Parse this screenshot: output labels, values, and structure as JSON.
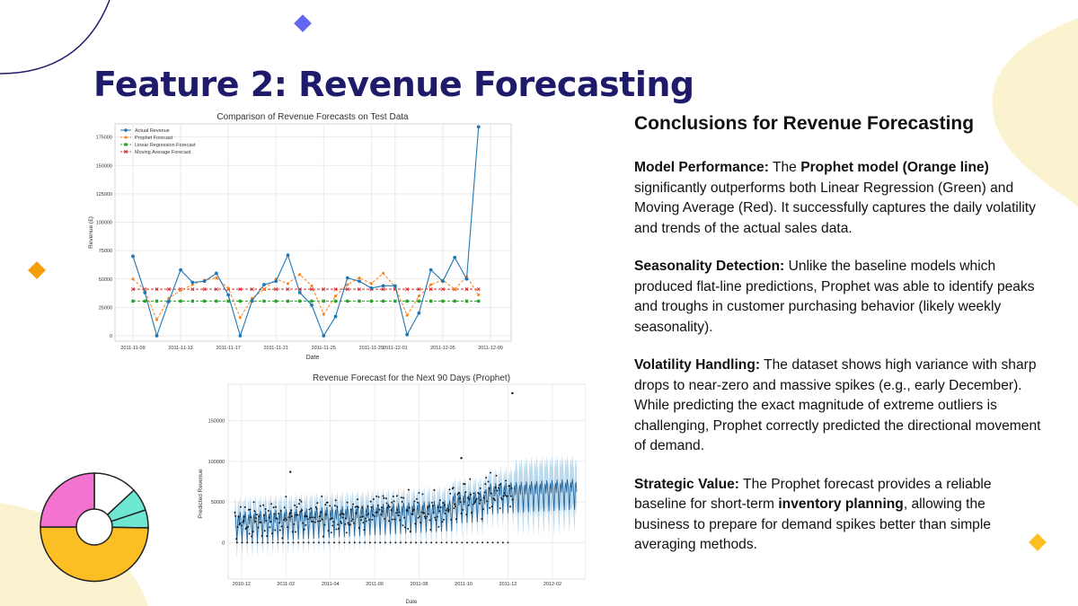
{
  "slide": {
    "title": "Feature 2: Revenue Forecasting"
  },
  "colors": {
    "navy": "#1e1b6b",
    "actual": "#1f77b4",
    "prophet": "#ff7f0e",
    "linear": "#2ca02c",
    "moving": "#d62728",
    "band": "#a6cde8",
    "cream": "#fbf3d0",
    "diamond_purple": "#6366f1",
    "diamond_orange": "#f59e0b",
    "diamond_yellow": "#fbbf24",
    "pie_pink": "#f472d0",
    "pie_teal": "#6ee7d2",
    "pie_yellow": "#fbbf24"
  },
  "chart_data": [
    {
      "type": "line",
      "title": "Comparison of Revenue Forecasts on Test Data",
      "xlabel": "Date",
      "ylabel": "Revenue (£)",
      "ylim": [
        0,
        185000
      ],
      "yticks": [
        0,
        25000,
        50000,
        75000,
        100000,
        125000,
        150000,
        175000
      ],
      "ytick_labels": [
        "0",
        "25000",
        "50000",
        "75000",
        "100000",
        "125000",
        "150000",
        "175000"
      ],
      "xtick_labels": [
        "2011-11-09",
        "2011-11-13",
        "2011-11-17",
        "2011-11-21",
        "2011-11-25",
        "2011-11-29",
        "2011-12-01",
        "2011-12-05",
        "2011-12-09"
      ],
      "xtick_days": [
        0,
        4,
        8,
        12,
        16,
        20,
        22,
        26,
        30
      ],
      "x_days": [
        0,
        1,
        2,
        3,
        4,
        5,
        6,
        7,
        8,
        9,
        10,
        11,
        12,
        13,
        14,
        15,
        16,
        17,
        18,
        19,
        20,
        21,
        22,
        23,
        24,
        25,
        26,
        27,
        28,
        29,
        30
      ],
      "legend": [
        "Actual Revenue",
        "Prophet Forecast",
        "Linear Regression Forecast",
        "Moving Average Forecast"
      ],
      "series": [
        {
          "name": "Actual Revenue",
          "values": [
            70000,
            38000,
            0,
            30000,
            58000,
            47000,
            48000,
            55000,
            36000,
            0,
            31000,
            45000,
            48000,
            71000,
            38000,
            27000,
            0,
            17000,
            51000,
            48000,
            42000,
            44000,
            44000,
            1000,
            20000,
            58000,
            48000,
            69000,
            50000,
            184000,
            null
          ]
        },
        {
          "name": "Prophet Forecast",
          "values": [
            50000,
            40000,
            14000,
            33000,
            40000,
            45000,
            49000,
            51000,
            42000,
            16000,
            33000,
            41000,
            50000,
            46000,
            54000,
            44000,
            19000,
            35000,
            45000,
            51000,
            46000,
            55000,
            43000,
            18000,
            35000,
            45000,
            49000,
            41000,
            52000,
            36000,
            null
          ]
        },
        {
          "name": "Linear Regression Forecast",
          "values": [
            30500,
            30500,
            30500,
            30500,
            30500,
            30500,
            30500,
            30500,
            30500,
            30500,
            30500,
            30500,
            30500,
            30500,
            30500,
            30500,
            30500,
            30500,
            30500,
            30500,
            30500,
            30500,
            30500,
            30500,
            30500,
            30500,
            30500,
            30500,
            30500,
            30500,
            null
          ]
        },
        {
          "name": "Moving Average Forecast",
          "values": [
            41000,
            41000,
            41000,
            41000,
            41000,
            41000,
            41000,
            41000,
            41000,
            41000,
            41000,
            41000,
            41000,
            41000,
            41000,
            41000,
            41000,
            41000,
            41000,
            41000,
            41000,
            41000,
            41000,
            41000,
            41000,
            41000,
            41000,
            41000,
            41000,
            41000,
            null
          ]
        }
      ]
    },
    {
      "type": "line",
      "title": "Revenue Forecast for the Next 90 Days (Prophet)",
      "xlabel": "Date",
      "ylabel": "Predicted Revenue",
      "ylim": [
        -45000,
        195000
      ],
      "yticks": [
        0,
        50000,
        100000,
        150000
      ],
      "ytick_labels": [
        "0",
        "50000",
        "100000",
        "150000"
      ],
      "xtick_labels": [
        "2010-12",
        "2011-02",
        "2011-04",
        "2011-06",
        "2011-08",
        "2011-10",
        "2011-12",
        "2012-02"
      ],
      "xtick_months": [
        0,
        2,
        4,
        6,
        8,
        10,
        12,
        14
      ],
      "x_range_months": [
        -0.6,
        15.5
      ],
      "series": [
        {
          "name": "Observed Revenue",
          "marker": "black dots"
        },
        {
          "name": "Prophet Forecast",
          "marker": "blue line"
        },
        {
          "name": "Uncertainty Interval",
          "marker": "light blue band"
        }
      ],
      "outliers": [
        {
          "month": 2.2,
          "value": 87000
        },
        {
          "month": 9.9,
          "value": 104000
        },
        {
          "month": 12.2,
          "value": 184000
        }
      ]
    }
  ],
  "conclusions": {
    "title": "Conclusions for Revenue Forecasting",
    "p1": {
      "lead": "Model Performance:",
      "t1": " The ",
      "b1": "Prophet model (Orange line)",
      "t2": " significantly outperforms both Linear Regression (Green) and Moving Average (Red). It successfully captures the daily volatility and trends of the actual sales data."
    },
    "p2": {
      "lead": "Seasonality Detection:",
      "t1": " Unlike the baseline models which produced flat-line predictions, Prophet was able to identify peaks and troughs in customer purchasing behavior (likely weekly seasonality)."
    },
    "p3": {
      "lead": "Volatility Handling:",
      "t1": " The dataset shows high variance with sharp drops to near-zero and massive spikes (e.g., early December). While predicting the exact magnitude of extreme outliers is challenging, Prophet correctly predicted the directional movement of demand."
    },
    "p4": {
      "lead": "Strategic Value:",
      "t1": " The Prophet forecast provides a reliable baseline for short-term ",
      "b1": "inventory planning",
      "t2": ", allowing the business to prepare for demand spikes better than simple averaging methods."
    }
  }
}
